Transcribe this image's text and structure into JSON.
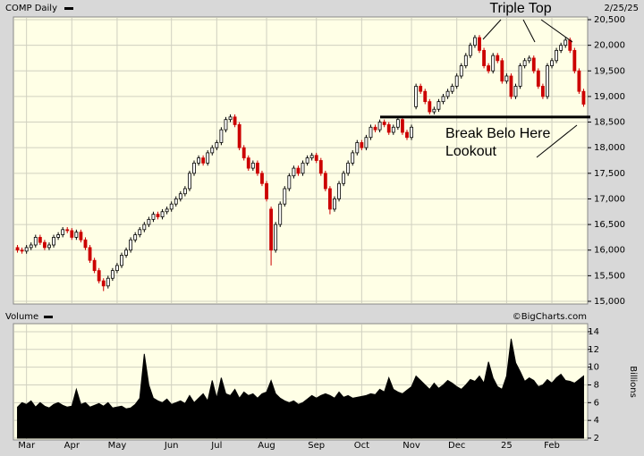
{
  "source": "©BigCharts.com",
  "chart_data": [
    {
      "type": "candlestick",
      "title": "COMP Daily",
      "date": "2/25/25",
      "candles": [
        [
          16050,
          16100,
          15950,
          16000
        ],
        [
          16000,
          16050,
          15930,
          15980
        ],
        [
          15980,
          16100,
          15930,
          16050
        ],
        [
          16050,
          16150,
          16000,
          16100
        ],
        [
          16100,
          16300,
          16050,
          16250
        ],
        [
          16250,
          16300,
          16100,
          16150
        ],
        [
          16150,
          16200,
          16000,
          16050
        ],
        [
          16050,
          16150,
          16000,
          16100
        ],
        [
          16100,
          16300,
          16050,
          16250
        ],
        [
          16250,
          16350,
          16200,
          16300
        ],
        [
          16300,
          16450,
          16250,
          16400
        ],
        [
          16400,
          16450,
          16330,
          16380
        ],
        [
          16380,
          16430,
          16200,
          16250
        ],
        [
          16250,
          16400,
          16200,
          16350
        ],
        [
          16350,
          16400,
          16150,
          16200
        ],
        [
          16200,
          16250,
          16000,
          16050
        ],
        [
          16050,
          16100,
          15750,
          15800
        ],
        [
          15800,
          15850,
          15550,
          15600
        ],
        [
          15600,
          15650,
          15350,
          15400
        ],
        [
          15400,
          15450,
          15200,
          15300
        ],
        [
          15300,
          15500,
          15250,
          15450
        ],
        [
          15450,
          15650,
          15400,
          15600
        ],
        [
          15600,
          15750,
          15550,
          15700
        ],
        [
          15700,
          15950,
          15650,
          15900
        ],
        [
          15900,
          16050,
          15850,
          16000
        ],
        [
          16000,
          16250,
          15950,
          16200
        ],
        [
          16200,
          16350,
          16150,
          16300
        ],
        [
          16300,
          16450,
          16250,
          16400
        ],
        [
          16400,
          16550,
          16350,
          16500
        ],
        [
          16500,
          16650,
          16450,
          16600
        ],
        [
          16600,
          16750,
          16550,
          16700
        ],
        [
          16700,
          16750,
          16600,
          16650
        ],
        [
          16650,
          16800,
          16600,
          16750
        ],
        [
          16750,
          16850,
          16700,
          16800
        ],
        [
          16800,
          16950,
          16750,
          16900
        ],
        [
          16900,
          17050,
          16850,
          17000
        ],
        [
          17000,
          17150,
          16950,
          17100
        ],
        [
          17100,
          17250,
          17050,
          17200
        ],
        [
          17200,
          17550,
          17150,
          17500
        ],
        [
          17500,
          17750,
          17450,
          17700
        ],
        [
          17700,
          17850,
          17650,
          17800
        ],
        [
          17800,
          17850,
          17650,
          17700
        ],
        [
          17700,
          17950,
          17650,
          17900
        ],
        [
          17900,
          18050,
          17850,
          18000
        ],
        [
          18000,
          18150,
          17950,
          18100
        ],
        [
          18100,
          18400,
          18050,
          18350
        ],
        [
          18350,
          18600,
          18300,
          18550
        ],
        [
          18550,
          18650,
          18500,
          18600
        ],
        [
          18600,
          18650,
          18400,
          18450
        ],
        [
          18450,
          18500,
          17950,
          18000
        ],
        [
          18000,
          18050,
          17750,
          17800
        ],
        [
          17800,
          17850,
          17550,
          17600
        ],
        [
          17600,
          17750,
          17550,
          17700
        ],
        [
          17700,
          17750,
          17450,
          17500
        ],
        [
          17500,
          17550,
          17250,
          17300
        ],
        [
          17300,
          17350,
          16950,
          17000
        ],
        [
          16800,
          16850,
          15700,
          16000
        ],
        [
          16000,
          16550,
          15950,
          16500
        ],
        [
          16500,
          16950,
          16450,
          16900
        ],
        [
          16900,
          17250,
          16850,
          17200
        ],
        [
          17200,
          17500,
          17150,
          17450
        ],
        [
          17450,
          17650,
          17400,
          17600
        ],
        [
          17600,
          17650,
          17450,
          17500
        ],
        [
          17500,
          17750,
          17450,
          17700
        ],
        [
          17700,
          17850,
          17650,
          17800
        ],
        [
          17800,
          17900,
          17750,
          17850
        ],
        [
          17850,
          17900,
          17700,
          17750
        ],
        [
          17750,
          17800,
          17450,
          17500
        ],
        [
          17500,
          17550,
          17150,
          17200
        ],
        [
          17200,
          17250,
          16700,
          16800
        ],
        [
          16800,
          17050,
          16750,
          17000
        ],
        [
          17000,
          17350,
          16950,
          17300
        ],
        [
          17300,
          17550,
          17250,
          17500
        ],
        [
          17500,
          17750,
          17450,
          17700
        ],
        [
          17700,
          17950,
          17650,
          17900
        ],
        [
          17900,
          18150,
          17850,
          18100
        ],
        [
          18100,
          18150,
          17950,
          18000
        ],
        [
          18000,
          18250,
          17950,
          18200
        ],
        [
          18200,
          18450,
          18150,
          18400
        ],
        [
          18400,
          18450,
          18300,
          18350
        ],
        [
          18350,
          18550,
          18300,
          18500
        ],
        [
          18500,
          18550,
          18400,
          18450
        ],
        [
          18450,
          18500,
          18250,
          18300
        ],
        [
          18300,
          18450,
          18250,
          18400
        ],
        [
          18400,
          18600,
          18350,
          18550
        ],
        [
          18550,
          18600,
          18250,
          18300
        ],
        [
          18300,
          18350,
          18150,
          18200
        ],
        [
          18200,
          18450,
          18150,
          18400
        ],
        [
          18800,
          19250,
          18750,
          19200
        ],
        [
          19200,
          19250,
          19050,
          19100
        ],
        [
          19100,
          19150,
          18850,
          18900
        ],
        [
          18900,
          18950,
          18650,
          18700
        ],
        [
          18700,
          18800,
          18650,
          18750
        ],
        [
          18750,
          18950,
          18700,
          18900
        ],
        [
          18900,
          19050,
          18850,
          19000
        ],
        [
          19000,
          19150,
          18950,
          19100
        ],
        [
          19100,
          19250,
          19050,
          19200
        ],
        [
          19200,
          19450,
          19150,
          19400
        ],
        [
          19400,
          19650,
          19350,
          19600
        ],
        [
          19600,
          19850,
          19550,
          19800
        ],
        [
          19800,
          20050,
          19750,
          20000
        ],
        [
          20000,
          20200,
          19950,
          20150
        ],
        [
          20150,
          20200,
          19850,
          19900
        ],
        [
          19900,
          19950,
          19550,
          19600
        ],
        [
          19600,
          19650,
          19450,
          19500
        ],
        [
          19500,
          19850,
          19450,
          19800
        ],
        [
          19800,
          19850,
          19650,
          19700
        ],
        [
          19700,
          19750,
          19250,
          19300
        ],
        [
          19300,
          19450,
          19250,
          19400
        ],
        [
          19400,
          19450,
          18950,
          19000
        ],
        [
          19000,
          19250,
          18950,
          19200
        ],
        [
          19200,
          19650,
          19150,
          19600
        ],
        [
          19600,
          19750,
          19550,
          19700
        ],
        [
          19700,
          19800,
          19650,
          19750
        ],
        [
          19750,
          19800,
          19450,
          19500
        ],
        [
          19500,
          19550,
          19150,
          19200
        ],
        [
          19200,
          19250,
          18950,
          19000
        ],
        [
          19000,
          19650,
          18950,
          19600
        ],
        [
          19600,
          19750,
          19550,
          19700
        ],
        [
          19700,
          19950,
          19650,
          19900
        ],
        [
          19900,
          20050,
          19850,
          20000
        ],
        [
          20000,
          20150,
          19950,
          20100
        ],
        [
          20100,
          20150,
          19850,
          19900
        ],
        [
          19900,
          19950,
          19450,
          19500
        ],
        [
          19500,
          19550,
          19050,
          19100
        ],
        [
          19100,
          19150,
          18800,
          18850
        ]
      ],
      "ylim": [
        15000,
        20500
      ],
      "yticks": [
        {
          "value": 15000,
          "label": "15,000"
        },
        {
          "value": 15500,
          "label": "15,500"
        },
        {
          "value": 16000,
          "label": "16,000"
        },
        {
          "value": 16500,
          "label": "16,500"
        },
        {
          "value": 17000,
          "label": "17,000"
        },
        {
          "value": 17500,
          "label": "17,500"
        },
        {
          "value": 18000,
          "label": "18,000"
        },
        {
          "value": 18500,
          "label": "18,500"
        },
        {
          "value": 19000,
          "label": "19,000"
        },
        {
          "value": 19500,
          "label": "19,500"
        },
        {
          "value": 20000,
          "label": "20,000"
        },
        {
          "value": 20500,
          "label": "20,500"
        }
      ],
      "grid": true,
      "up_color": "#ffffff",
      "down_color": "#cc0000",
      "annotations": [
        {
          "text": "Triple Top"
        },
        {
          "text": "Break Belo Here",
          "level": 18600
        },
        {
          "text": "Lookout"
        }
      ]
    },
    {
      "type": "area",
      "title": "Volume",
      "y_label": "Billions",
      "color": "#000000",
      "categories": [
        null,
        null,
        "Mar",
        null,
        null,
        null,
        null,
        null,
        null,
        null,
        null,
        null,
        "Apr",
        null,
        null,
        null,
        null,
        null,
        null,
        null,
        null,
        null,
        "May",
        null,
        null,
        null,
        null,
        null,
        null,
        null,
        null,
        null,
        null,
        null,
        "Jun",
        null,
        null,
        null,
        null,
        null,
        null,
        null,
        null,
        null,
        "Jul",
        null,
        null,
        null,
        null,
        null,
        null,
        null,
        null,
        null,
        null,
        "Aug",
        null,
        null,
        null,
        null,
        null,
        null,
        null,
        null,
        null,
        null,
        "Sep",
        null,
        null,
        null,
        null,
        null,
        null,
        null,
        null,
        null,
        "Oct",
        null,
        null,
        null,
        null,
        null,
        null,
        null,
        null,
        null,
        null,
        "Nov",
        null,
        null,
        null,
        null,
        null,
        null,
        null,
        null,
        null,
        "Dec",
        null,
        null,
        null,
        null,
        null,
        null,
        null,
        null,
        null,
        null,
        "25",
        null,
        null,
        null,
        null,
        null,
        null,
        null,
        null,
        null,
        "Feb",
        null,
        null,
        null,
        null,
        null,
        null,
        null
      ],
      "values": [
        5.5,
        6,
        5.8,
        6.2,
        5.5,
        6,
        5.6,
        5.4,
        5.8,
        6,
        5.7,
        5.5,
        5.6,
        7.5,
        5.8,
        6,
        5.5,
        5.7,
        5.9,
        5.6,
        6,
        5.4,
        5.5,
        5.6,
        5.3,
        5.4,
        5.8,
        6.5,
        11.5,
        8,
        6.5,
        6.2,
        6,
        6.4,
        5.8,
        6,
        6.2,
        5.9,
        6.8,
        6,
        6.5,
        7,
        6.2,
        8.5,
        6.5,
        8.8,
        7,
        6.8,
        7.5,
        6.5,
        7.2,
        6.8,
        7,
        6.5,
        7,
        7.2,
        8.5,
        7,
        6.5,
        6.2,
        6,
        6.2,
        5.8,
        6,
        6.4,
        6.8,
        6.5,
        6.8,
        7,
        6.8,
        6.5,
        7.2,
        6.6,
        6.8,
        6.5,
        6.6,
        6.7,
        6.8,
        7,
        6.9,
        7.5,
        7.2,
        8.8,
        7.5,
        7.2,
        7,
        7.4,
        7.8,
        9,
        8.5,
        8,
        7.5,
        8.2,
        7.6,
        8,
        8.5,
        8.2,
        7.8,
        7.5,
        8,
        8.6,
        8.4,
        9,
        8.2,
        10.6,
        8.8,
        7.8,
        7.5,
        9,
        13.2,
        10.5,
        9.5,
        8.4,
        8.8,
        8.5,
        7.8,
        8,
        8.6,
        8.2,
        8.8,
        9.2,
        8.5,
        8.4,
        8.2,
        8.6,
        9
      ],
      "ylim": [
        2,
        14.5
      ],
      "yticks": [
        2,
        4,
        6,
        8,
        10,
        12,
        14
      ],
      "grid": true
    }
  ]
}
